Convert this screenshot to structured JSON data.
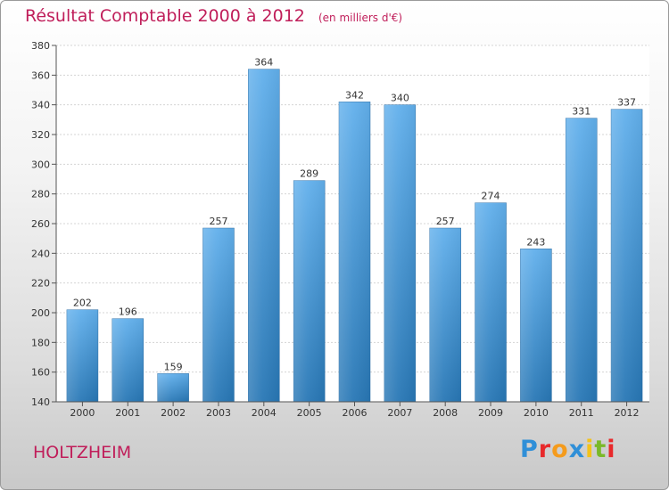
{
  "title": "Résultat Comptable 2000 à 2012",
  "unit_note": "(en milliers d'€)",
  "commune": "HOLTZHEIM",
  "logo": {
    "letters": [
      "P",
      "r",
      "o",
      "x",
      "i",
      "t",
      "i"
    ],
    "colors": [
      "#2f8fd8",
      "#e8292b",
      "#f59b1c",
      "#2f8fd8",
      "#f4c21a",
      "#7ab929",
      "#e8292b"
    ]
  },
  "colors": {
    "bar_top": "#62b0ec",
    "bar_bottom": "#2877b5",
    "accent": "#c01e5a"
  },
  "chart_data": {
    "type": "bar",
    "title": "Résultat Comptable 2000 à 2012",
    "categories": [
      "2000",
      "2001",
      "2002",
      "2003",
      "2004",
      "2005",
      "2006",
      "2007",
      "2008",
      "2009",
      "2010",
      "2011",
      "2012"
    ],
    "values": [
      202,
      196,
      159,
      257,
      364,
      289,
      342,
      340,
      257,
      274,
      243,
      331,
      337
    ],
    "ylim": [
      140,
      380
    ],
    "yticks": [
      140,
      160,
      180,
      200,
      220,
      240,
      260,
      280,
      300,
      320,
      340,
      360,
      380
    ],
    "grid": true,
    "xlabel": "",
    "ylabel": ""
  }
}
